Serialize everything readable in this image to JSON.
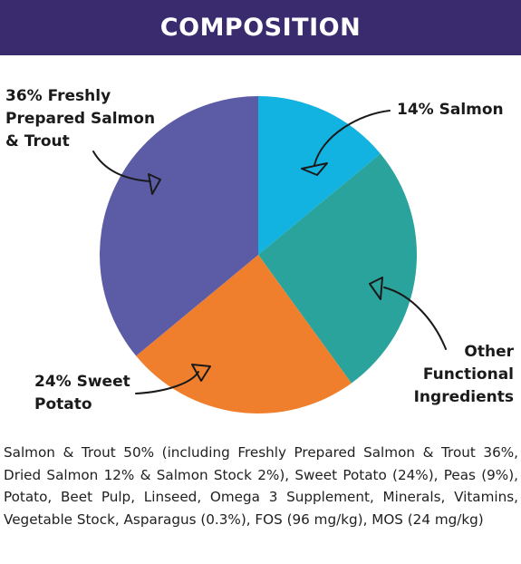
{
  "header": {
    "title": "COMPOSITION",
    "background": "#3a2a6e"
  },
  "chart_data": {
    "type": "pie",
    "title": "",
    "slices": [
      {
        "label": "14% Salmon",
        "value": 14,
        "color": "#12b3e0"
      },
      {
        "label": "Other Functional Ingredients",
        "value": 26,
        "color": "#29a39b"
      },
      {
        "label": "24% Sweet Potato",
        "value": 24,
        "color": "#f07f2d"
      },
      {
        "label": "36% Freshly Prepared Salmon & Trout",
        "value": 36,
        "color": "#5c5ca6"
      }
    ],
    "start": "12 o'clock",
    "direction": "clockwise",
    "callouts": {
      "salmon": [
        "14% Salmon"
      ],
      "other": [
        "Other",
        "Functional",
        "Ingredients"
      ],
      "sweet_potato": [
        "24% Sweet",
        "Potato"
      ],
      "fresh": [
        "36% Freshly",
        "Prepared Salmon",
        "& Trout"
      ]
    }
  },
  "description": "Salmon & Trout 50% (including Freshly Prepared Salmon & Trout 36%, Dried Salmon 12% & Salmon Stock 2%), Sweet Potato (24%), Peas (9%), Potato, Beet Pulp, Linseed, Omega 3 Supplement, Minerals, Vitamins, Vegetable Stock, Asparagus (0.3%), FOS (96 mg/kg), MOS (24 mg/kg)"
}
